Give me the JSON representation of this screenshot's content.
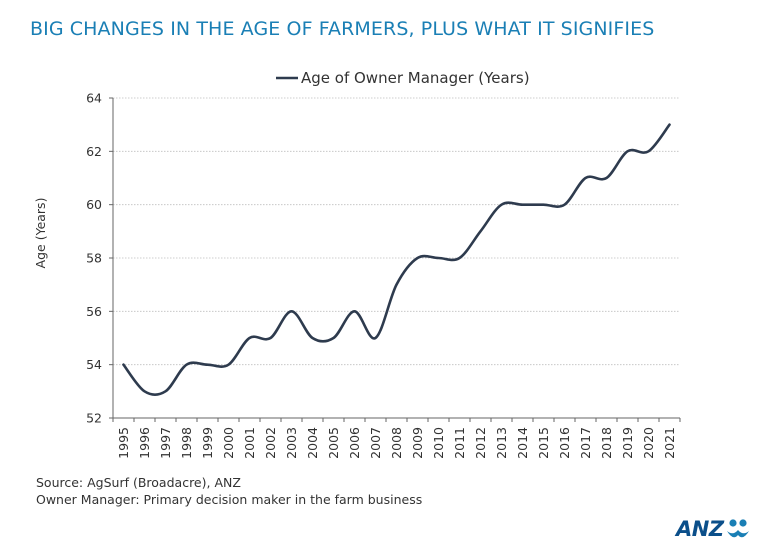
{
  "title": "BIG CHANGES IN THE AGE OF FARMERS, PLUS WHAT IT SIGNIFIES",
  "source_lines": [
    "Source: AgSurf (Broadacre), ANZ",
    "Owner Manager: Primary decision maker in the farm business"
  ],
  "logo": {
    "text": "ANZ",
    "icon": "anz-people-icon"
  },
  "colors": {
    "title": "#1a7fb5",
    "line": "#2e3b4e",
    "grid": "#bfbfbf",
    "logo": "#0b4f8a"
  },
  "chart_data": {
    "type": "line",
    "xlabel": "",
    "ylabel": "Age (Years)",
    "ylim": [
      52,
      64
    ],
    "yticks": [
      52,
      54,
      56,
      58,
      60,
      62,
      64
    ],
    "grid": true,
    "legend_position": "top-center",
    "categories": [
      "1995",
      "1996",
      "1997",
      "1998",
      "1999",
      "2000",
      "2001",
      "2002",
      "2003",
      "2004",
      "2005",
      "2006",
      "2007",
      "2008",
      "2009",
      "2010",
      "2011",
      "2012",
      "2013",
      "2014",
      "2015",
      "2016",
      "2017",
      "2018",
      "2019",
      "2020",
      "2021"
    ],
    "series": [
      {
        "name": "Age of Owner Manager (Years)",
        "values": [
          54,
          53,
          53,
          54,
          54,
          54,
          55,
          55,
          56,
          55,
          55,
          56,
          55,
          57,
          58,
          58,
          58,
          59,
          60,
          60,
          60,
          60,
          61,
          61,
          62,
          62,
          63
        ]
      }
    ]
  }
}
